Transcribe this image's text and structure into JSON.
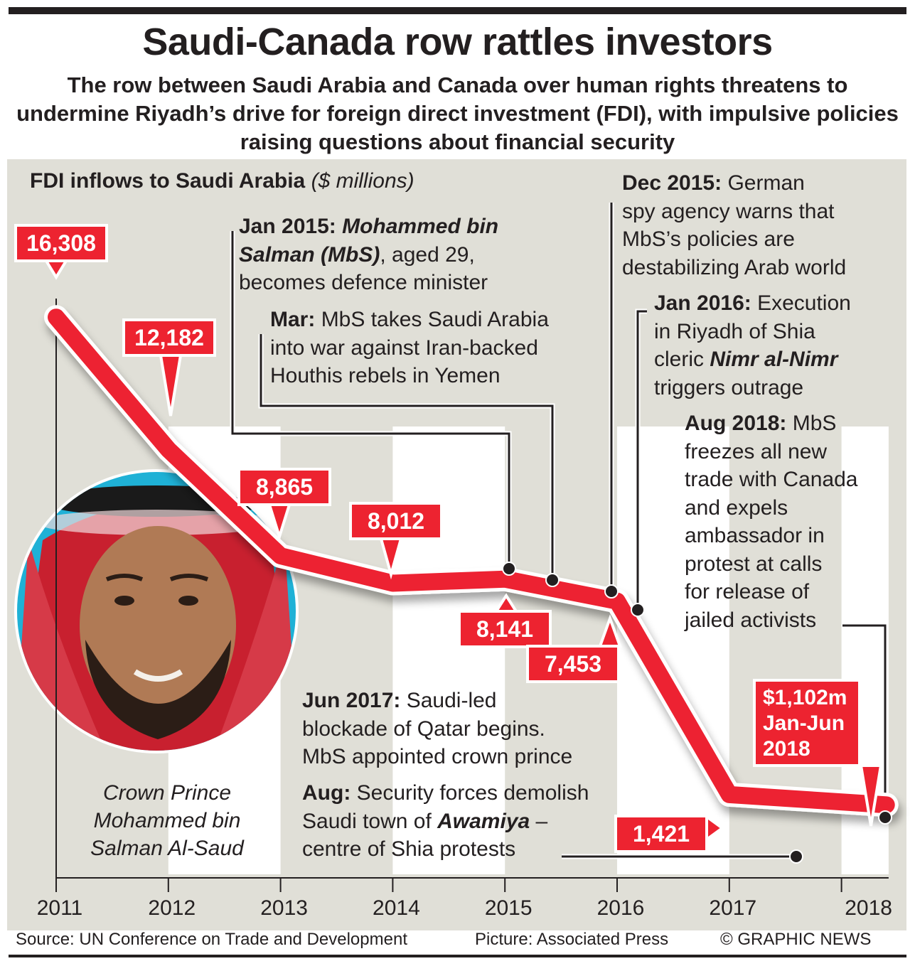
{
  "header": {
    "title": "Saudi-Canada row rattles investors",
    "subtitle": "The row between Saudi Arabia and Canada over human rights threatens to undermine Riyadh’s drive for foreign direct investment (FDI), with impulsive policies raising questions about financial security"
  },
  "chart_data": {
    "type": "line",
    "title": "FDI inflows to Saudi Arabia",
    "unit_label": "($ millions)",
    "xlabel": "",
    "ylabel": "",
    "x_ticks": [
      "2011",
      "2012",
      "2013",
      "2014",
      "2015",
      "2016",
      "2017",
      "2018"
    ],
    "ylim": [
      0,
      17000
    ],
    "grid": false,
    "series": [
      {
        "name": "FDI inflows",
        "color": "#ed2330",
        "points": [
          {
            "x": 2011,
            "y": 16308,
            "label": "16,308"
          },
          {
            "x": 2012,
            "y": 12182,
            "label": "12,182"
          },
          {
            "x": 2013,
            "y": 8865,
            "label": "8,865"
          },
          {
            "x": 2014,
            "y": 8012,
            "label": "8,012"
          },
          {
            "x": 2015,
            "y": 8141,
            "label": "8,141"
          },
          {
            "x": 2016,
            "y": 7453,
            "label": "7,453"
          },
          {
            "x": 2017,
            "y": 1421,
            "label": "1,421"
          },
          {
            "x": 2018.4,
            "y": 1102,
            "label": "$1,102m Jan-Jun 2018",
            "label_lines": [
              "$1,102m",
              "Jan-Jun",
              "2018"
            ]
          }
        ]
      }
    ],
    "annotations": [
      {
        "id": "jan2015",
        "x": 2015.0,
        "date": "Jan 2015:",
        "lines": [
          [
            {
              "t": "Jan 2015: ",
              "s": "b"
            },
            {
              "t": "Mohammed bin",
              "s": "bi"
            }
          ],
          [
            {
              "t": "Salman (MbS)",
              "s": "bi"
            },
            {
              "t": ", aged 29,",
              "s": "n"
            }
          ],
          [
            {
              "t": "becomes defence minister",
              "s": "n"
            }
          ]
        ]
      },
      {
        "id": "mar2015",
        "x": 2015.4,
        "date": "Mar:",
        "lines": [
          [
            {
              "t": "Mar: ",
              "s": "b"
            },
            {
              "t": "MbS takes Saudi Arabia",
              "s": "n"
            }
          ],
          [
            {
              "t": "into war against Iran-backed",
              "s": "n"
            }
          ],
          [
            {
              "t": "Houthis rebels in Yemen",
              "s": "n"
            }
          ]
        ]
      },
      {
        "id": "dec2015",
        "x": 2015.95,
        "date": "Dec 2015:",
        "lines": [
          [
            {
              "t": "Dec 2015: ",
              "s": "b"
            },
            {
              "t": "German",
              "s": "n"
            }
          ],
          [
            {
              "t": "spy agency warns that",
              "s": "n"
            }
          ],
          [
            {
              "t": "MbS’s policies are",
              "s": "n"
            }
          ],
          [
            {
              "t": "destabilizing Arab world",
              "s": "n"
            }
          ]
        ]
      },
      {
        "id": "jan2016",
        "x": 2016.2,
        "date": "Jan 2016:",
        "lines": [
          [
            {
              "t": "Jan 2016: ",
              "s": "b"
            },
            {
              "t": "Execution",
              "s": "n"
            }
          ],
          [
            {
              "t": "in Riyadh of Shia",
              "s": "n"
            }
          ],
          [
            {
              "t": "cleric ",
              "s": "n"
            },
            {
              "t": "Nimr al-Nimr",
              "s": "bi"
            }
          ],
          [
            {
              "t": "triggers outrage",
              "s": "n"
            }
          ]
        ]
      },
      {
        "id": "aug2018",
        "x": 2018.4,
        "date": "Aug 2018:",
        "lines": [
          [
            {
              "t": "Aug 2018: ",
              "s": "b"
            },
            {
              "t": "MbS",
              "s": "n"
            }
          ],
          [
            {
              "t": "freezes all new",
              "s": "n"
            }
          ],
          [
            {
              "t": "trade with Canada",
              "s": "n"
            }
          ],
          [
            {
              "t": "and expels",
              "s": "n"
            }
          ],
          [
            {
              "t": "ambassador in",
              "s": "n"
            }
          ],
          [
            {
              "t": "protest at calls",
              "s": "n"
            }
          ],
          [
            {
              "t": "for release of",
              "s": "n"
            }
          ],
          [
            {
              "t": "jailed activists",
              "s": "n"
            }
          ]
        ]
      },
      {
        "id": "jun2017",
        "x": 2017.45,
        "date": "Jun 2017:",
        "lines": [
          [
            {
              "t": "Jun 2017: ",
              "s": "b"
            },
            {
              "t": "Saudi-led",
              "s": "n"
            }
          ],
          [
            {
              "t": "blockade of Qatar begins.",
              "s": "n"
            }
          ],
          [
            {
              "t": "MbS appointed crown prince",
              "s": "n"
            }
          ]
        ]
      },
      {
        "id": "aug2017",
        "x": 2017.6,
        "date": "Aug:",
        "lines": [
          [
            {
              "t": "Aug: ",
              "s": "b"
            },
            {
              "t": "Security forces demolish",
              "s": "n"
            }
          ],
          [
            {
              "t": "Saudi town of ",
              "s": "n"
            },
            {
              "t": "Awamiya",
              "s": "bi"
            },
            {
              "t": " –",
              "s": "n"
            }
          ],
          [
            {
              "t": "centre of Shia protests",
              "s": "n"
            }
          ]
        ]
      }
    ]
  },
  "photo": {
    "caption_lines": [
      "Crown Prince",
      "Mohammed bin",
      "Salman Al-Saud"
    ],
    "icon": "portrait-photo"
  },
  "footer": {
    "source": "Source: UN Conference on Trade and Development",
    "picture": "Picture: Associated Press",
    "copyright": "© GRAPHIC NEWS"
  },
  "colors": {
    "line_red": "#ed2330",
    "panel_bg": "#e0dfd7",
    "text": "#231f20",
    "photo_bg": "#1fb1d6"
  }
}
